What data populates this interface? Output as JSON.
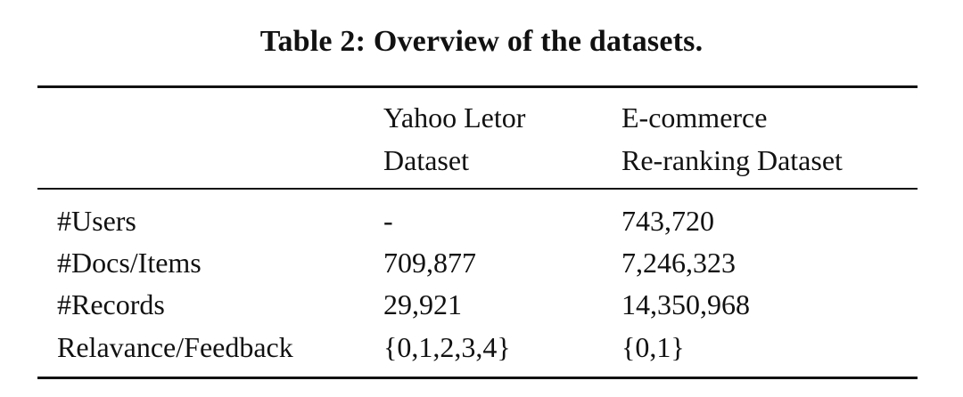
{
  "caption": "Table 2: Overview of the datasets.",
  "table": {
    "headers": [
      {
        "line1": "",
        "line2": ""
      },
      {
        "line1": "Yahoo Letor",
        "line2": "Dataset"
      },
      {
        "line1": "E-commerce",
        "line2": "Re-ranking Dataset"
      }
    ],
    "rows": [
      [
        "#Users",
        "-",
        "743,720"
      ],
      [
        "#Docs/Items",
        "709,877",
        "7,246,323"
      ],
      [
        "#Records",
        "29,921",
        "14,350,968"
      ],
      [
        "Relavance/Feedback",
        "{0,1,2,3,4}",
        "{0,1}"
      ]
    ]
  }
}
